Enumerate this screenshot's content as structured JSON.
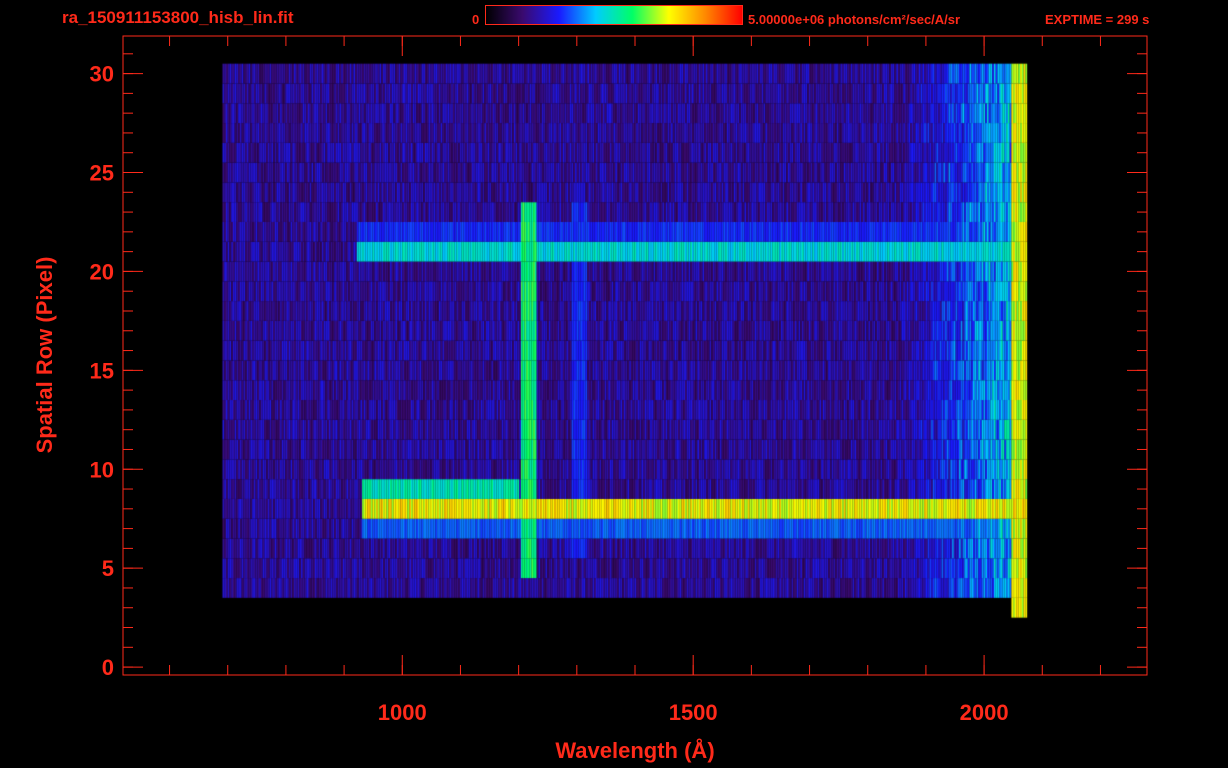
{
  "header": {
    "file_title": "ra_150911153800_hisb_lin.fit",
    "colorbar_min": "0",
    "colorbar_max": "5.00000e+06 photons/cm²/sec/A/sr",
    "exptime": "EXPTIME = 299 s"
  },
  "colors": {
    "axis": "#ff2a1a",
    "background": "#000000",
    "colormap": [
      "#000000",
      "#3a0a6e",
      "#1a1aff",
      "#00ccff",
      "#00ff66",
      "#ffff00",
      "#ff8800",
      "#ff0000"
    ]
  },
  "chart_data": {
    "type": "heatmap",
    "title": "ra_150911153800_hisb_lin.fit",
    "xlabel": "Wavelength (Å)",
    "ylabel": "Spatial Row (Pixel)",
    "xlim": [
      520,
      2280
    ],
    "ylim": [
      -0.4,
      31.9
    ],
    "x_ticks": [
      1000,
      1500,
      2000
    ],
    "y_ticks": [
      0,
      5,
      10,
      15,
      20,
      25,
      30
    ],
    "x_tick_labels": [
      "1000",
      "1500",
      "2000"
    ],
    "y_tick_labels": [
      "0",
      "5",
      "10",
      "15",
      "20",
      "25",
      "30"
    ],
    "x_minor_step": 100,
    "y_minor_step": 1,
    "grid": false,
    "colorbar": {
      "min": 0,
      "max": 5000000,
      "units": "photons/cm²/sec/A/sr"
    },
    "rows": [
      0,
      1,
      2,
      3,
      4,
      5,
      6,
      7,
      8,
      9,
      10,
      11,
      12,
      13,
      14,
      15,
      16,
      17,
      18,
      19,
      20,
      21,
      22,
      23,
      24,
      25,
      26,
      27,
      28,
      29,
      30
    ],
    "detector_range": {
      "wavelength": [
        690,
        2070
      ],
      "rows": [
        4,
        30
      ]
    },
    "bright_bands": [
      {
        "row": 8,
        "wavelength": [
          930,
          2070
        ],
        "level": 0.72
      },
      {
        "row": 9,
        "wavelength": [
          930,
          1200
        ],
        "level": 0.5
      },
      {
        "row": 7,
        "wavelength": [
          930,
          2060
        ],
        "level": 0.34
      },
      {
        "row": 21,
        "wavelength": [
          920,
          2060
        ],
        "level": 0.46
      },
      {
        "row": 22,
        "wavelength": [
          920,
          2060
        ],
        "level": 0.3
      }
    ],
    "emission_lines": [
      {
        "wavelength": 1216,
        "rows": [
          5,
          23
        ],
        "level": 0.56
      },
      {
        "wavelength": 1304,
        "rows": [
          6,
          23
        ],
        "level": 0.3
      },
      {
        "wavelength": 2060,
        "rows": [
          3,
          30
        ],
        "level": 0.7
      }
    ]
  }
}
